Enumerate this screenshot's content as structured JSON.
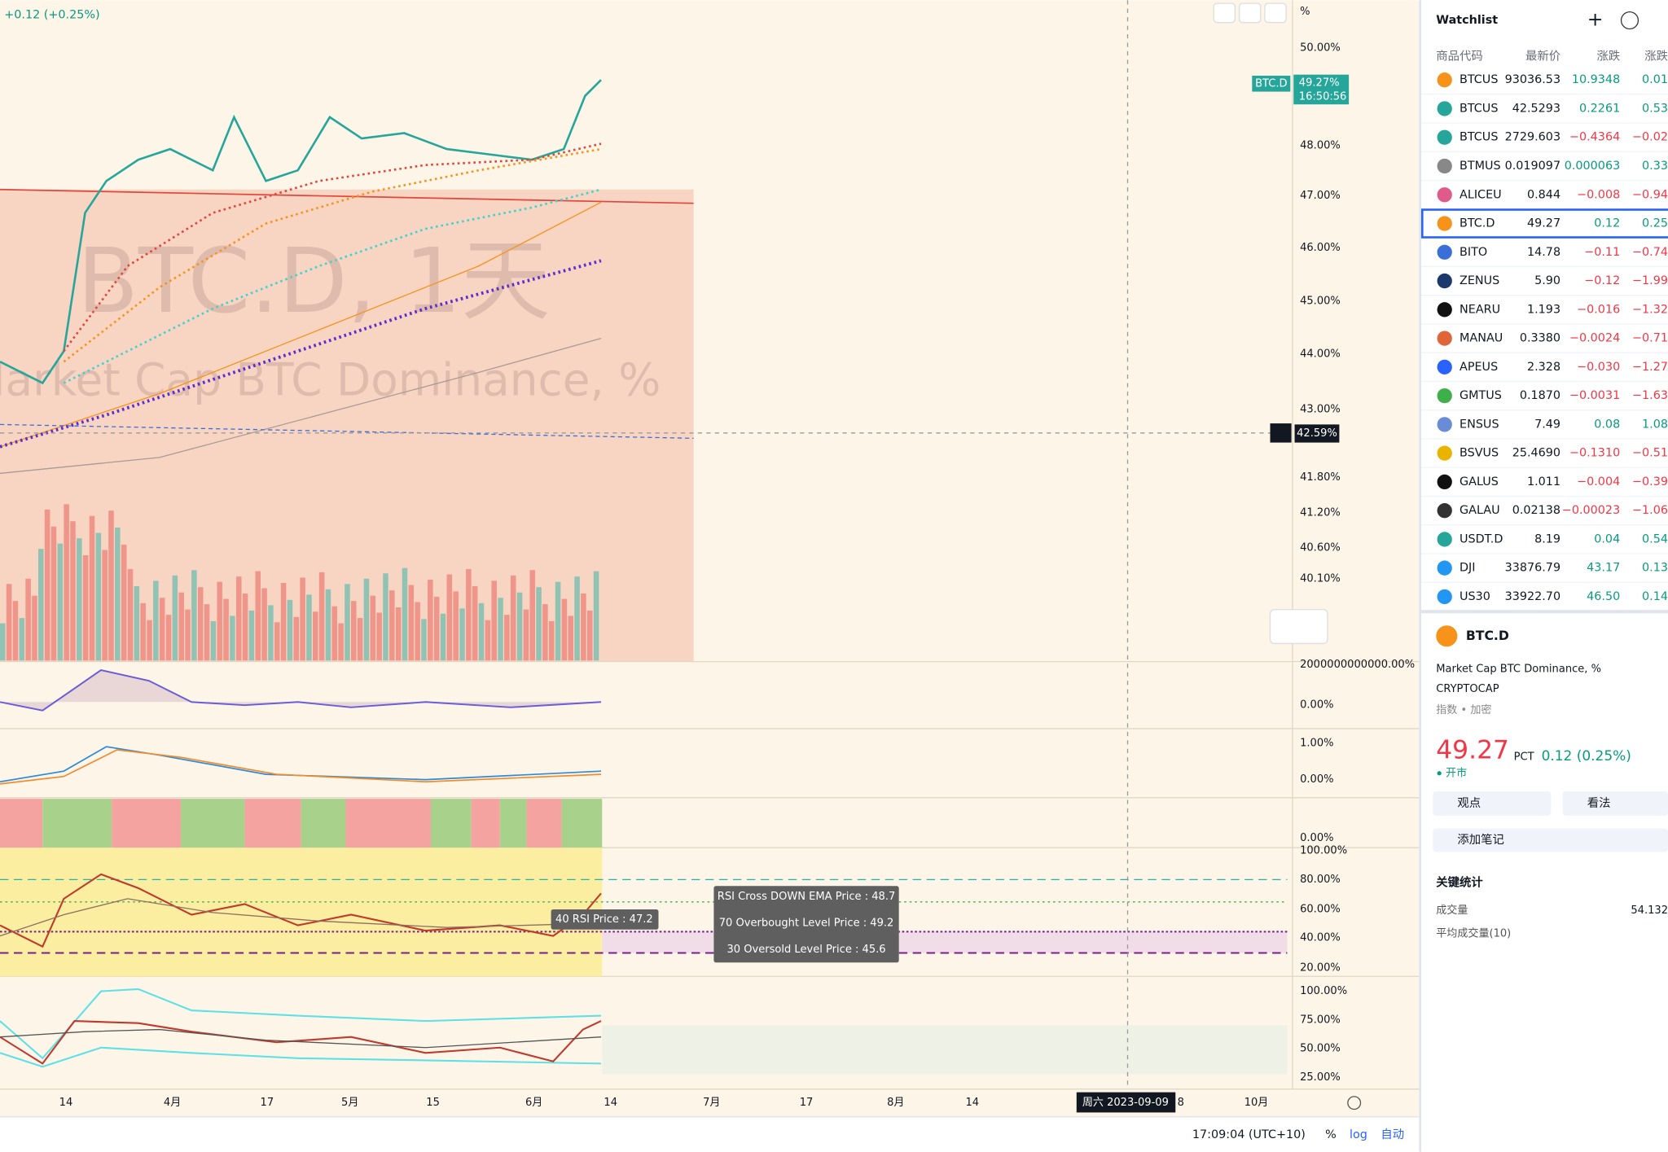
{
  "chart": {
    "change": "+0.12 (+0.25%)",
    "watermark_symbol": "BTC.D, 1天",
    "watermark_name": "Market Cap BTC Dominance, %",
    "axis_unit": "%",
    "price_labels": [
      "50.00%",
      "48.00%",
      "47.00%",
      "46.00%",
      "45.00%",
      "44.00%",
      "43.00%",
      "41.80%",
      "41.20%",
      "40.60%",
      "40.10%",
      "2000000000000.00%",
      "0.00%",
      "1.00%",
      "0.00%",
      "0.00%",
      "100.00%",
      "80.00%",
      "60.00%",
      "40.00%",
      "20.00%",
      "100.00%",
      "75.00%",
      "50.00%",
      "25.00%"
    ],
    "symbol_tag": "BTC.D",
    "last_price": "49.27%",
    "countdown": "16:50:56",
    "crosshair_price": "42.59%",
    "time_labels": [
      "14",
      "4月",
      "17",
      "5月",
      "15",
      "6月",
      "14",
      "7月",
      "17",
      "8月",
      "14",
      "8",
      "10月"
    ],
    "crosshair_date": "周六 2023-09-09",
    "tooltips": [
      "RSI Cross DOWN EMA Price : 48.7",
      "70 Overbought Level Price : 49.2",
      "30 Oversold Level Price : 45.6"
    ],
    "rsi_tooltip": "40 RSI Price : 47.2",
    "status": {
      "time": "17:09:04 (UTC+10)",
      "percent": "%",
      "log": "log",
      "auto": "自动"
    }
  },
  "watchlist": {
    "title": "Watchlist",
    "columns": [
      "商品代码",
      "最新价",
      "涨跌",
      "涨跌"
    ],
    "rows": [
      [
        "BTCUS",
        "93036.53",
        "10.9348",
        "0.01"
      ],
      [
        "BTCUS",
        "42.5293",
        "0.2261",
        "0.53"
      ],
      [
        "BTCUS",
        "2729.603",
        "−0.4364",
        "−0.02"
      ],
      [
        "BTMUS",
        "0.019097",
        "0.000063",
        "0.33"
      ],
      [
        "ALICEU",
        "0.844",
        "−0.008",
        "−0.94"
      ],
      [
        "BTC.D",
        "49.27",
        "0.12",
        "0.25"
      ],
      [
        "BITO",
        "14.78",
        "−0.11",
        "−0.74"
      ],
      [
        "ZENUS",
        "5.90",
        "−0.12",
        "−1.99"
      ],
      [
        "NEARU",
        "1.193",
        "−0.016",
        "−1.32"
      ],
      [
        "MANAU",
        "0.3380",
        "−0.0024",
        "−0.71"
      ],
      [
        "APEUS",
        "2.328",
        "−0.030",
        "−1.27"
      ],
      [
        "GMTUS",
        "0.1870",
        "−0.0031",
        "−1.63"
      ],
      [
        "ENSUS",
        "7.49",
        "0.08",
        "1.08"
      ],
      [
        "BSVUS",
        "25.4690",
        "−0.1310",
        "−0.51"
      ],
      [
        "GALUS",
        "1.011",
        "−0.004",
        "−0.39"
      ],
      [
        "GALAU",
        "0.02138",
        "−0.00023",
        "−1.06"
      ],
      [
        "USDT.D",
        "8.19",
        "0.04",
        "0.54"
      ],
      [
        "DJI",
        "33876.79",
        "43.17",
        "0.13"
      ],
      [
        "US30",
        "33922.70",
        "46.50",
        "0.14"
      ]
    ]
  },
  "details": {
    "symbol": "BTC.D",
    "name": "Market Cap BTC Dominance, %",
    "exchange": "CRYPTOCAP",
    "category": "指数 • 加密",
    "price": "49.27",
    "unit": "PCT",
    "change": "0.12 (0.25%)",
    "market_status": "开市",
    "buttons": [
      "观点",
      "看法"
    ],
    "note": "添加笔记",
    "stats_title": "关键统计",
    "stats": [
      {
        "label": "成交量",
        "value": "54.132"
      },
      {
        "label": "平均成交量(10)"
      }
    ]
  }
}
